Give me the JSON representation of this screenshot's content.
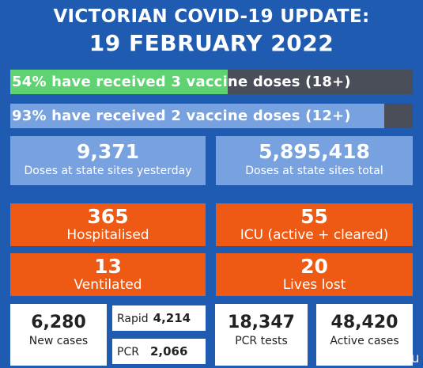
{
  "header": {
    "title": "VICTORIAN COVID-19 UPDATE:",
    "date": "19 FEBRUARY 2022"
  },
  "vaccination": {
    "bar1": {
      "text": "54% have received 3 vaccine doses (18+)",
      "percent": 54
    },
    "bar2": {
      "text": "93% have received 2 vaccine doses (12+)",
      "percent": 93
    }
  },
  "doses": {
    "yesterday": {
      "value": "9,371",
      "label": "Doses at state sites yesterday"
    },
    "total": {
      "value": "5,895,418",
      "label": "Doses at state sites total"
    }
  },
  "hospital": {
    "hospitalised": {
      "value": "365",
      "label": "Hospitalised"
    },
    "icu": {
      "value": "55",
      "label": "ICU (active + cleared)"
    },
    "ventilated": {
      "value": "13",
      "label": "Ventilated"
    },
    "lives_lost": {
      "value": "20",
      "label": "Lives lost"
    }
  },
  "cases": {
    "new_cases": {
      "value": "6,280",
      "label": "New cases"
    },
    "rapid": {
      "label": "Rapid",
      "value": "4,214"
    },
    "pcr": {
      "label": "PCR",
      "value": "2,066"
    },
    "pcr_tests": {
      "value": "18,347",
      "label": "PCR tests"
    },
    "active_cases": {
      "value": "48,420",
      "label": "Active cases"
    }
  },
  "watermark": "com.au",
  "colors": {
    "background": "#1f5bb0",
    "bar_track": "#4a4e58",
    "bar1_fill": "#5fd271",
    "bar2_fill": "#77a1df",
    "tile_blue": "#77a1df",
    "tile_orange": "#ee5a13",
    "tile_white": "#ffffff"
  }
}
